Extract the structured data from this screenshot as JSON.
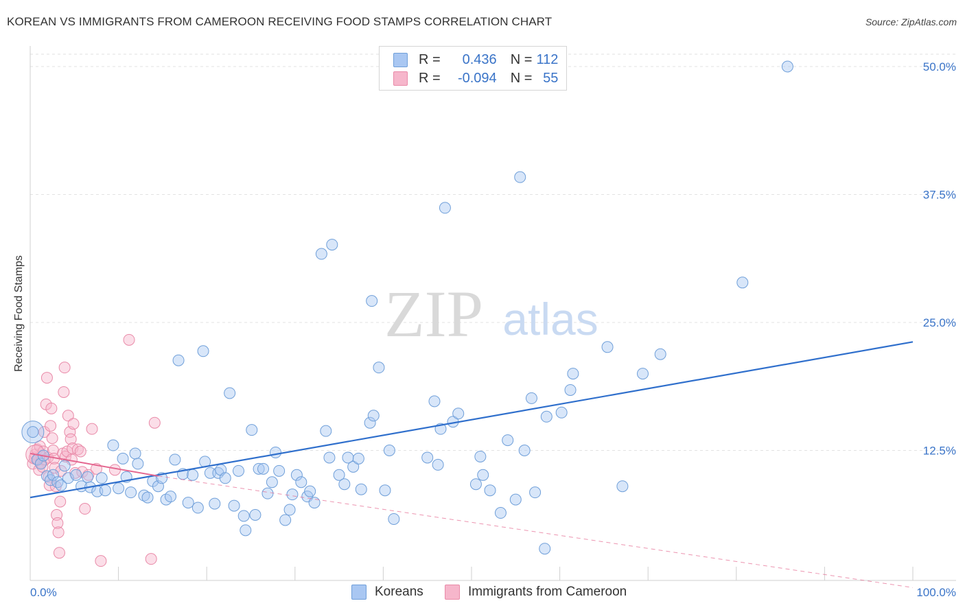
{
  "title": "KOREAN VS IMMIGRANTS FROM CAMEROON RECEIVING FOOD STAMPS CORRELATION CHART",
  "source": "Source: ZipAtlas.com",
  "watermark": {
    "zip": "ZIP",
    "atlas": "atlas"
  },
  "legend": {
    "rows": [
      {
        "r_label": "R =",
        "r_value": "0.436",
        "n_label": "N =",
        "n_value": "112",
        "color": "#a9c7f2"
      },
      {
        "r_label": "R =",
        "r_value": "-0.094",
        "n_label": "N =",
        "n_value": "55",
        "color": "#f6b6cb"
      }
    ]
  },
  "bottom_legend": {
    "koreans": "Koreans",
    "cameroon": "Immigrants from Cameroon"
  },
  "colors": {
    "blue_fill": "#a9c7f2",
    "blue_stroke": "#6f9fd9",
    "blue_line": "#2f6fcc",
    "pink_fill": "#f6b6cb",
    "pink_stroke": "#e98aa8",
    "pink_line": "#e4668f",
    "axis_text": "#3a74c8"
  },
  "chart_data": {
    "type": "scatter",
    "title": "KOREAN VS IMMIGRANTS FROM CAMEROON RECEIVING FOOD STAMPS CORRELATION CHART",
    "xlabel": "",
    "ylabel": "Receiving Food Stamps",
    "xlim": [
      0,
      100
    ],
    "ylim": [
      0,
      52
    ],
    "y_ticks": [
      12.5,
      25.0,
      37.5,
      50.0
    ],
    "y_tick_labels": [
      "12.5%",
      "25.0%",
      "37.5%",
      "50.0%"
    ],
    "x_tick_labels": [
      "0.0%",
      "100.0%"
    ],
    "grid": "horizontal dashed",
    "legend_position": "top-center",
    "series": [
      {
        "name": "Koreans",
        "trend": {
          "x": [
            0,
            100
          ],
          "y": [
            7.9,
            23.1
          ]
        },
        "points": [
          [
            0.3,
            14.3
          ],
          [
            0.8,
            11.6
          ],
          [
            1.2,
            11.2
          ],
          [
            1.5,
            12.0
          ],
          [
            1.9,
            10.0
          ],
          [
            2.3,
            9.6
          ],
          [
            2.6,
            10.1
          ],
          [
            3.1,
            9.4
          ],
          [
            3.5,
            9.1
          ],
          [
            3.9,
            11.0
          ],
          [
            4.3,
            9.8
          ],
          [
            5.2,
            10.1
          ],
          [
            5.8,
            9.0
          ],
          [
            6.5,
            9.9
          ],
          [
            6.8,
            8.9
          ],
          [
            7.6,
            8.5
          ],
          [
            8.1,
            9.8
          ],
          [
            8.5,
            8.6
          ],
          [
            9.4,
            13.0
          ],
          [
            10.0,
            8.8
          ],
          [
            10.5,
            11.7
          ],
          [
            10.9,
            9.9
          ],
          [
            11.4,
            8.4
          ],
          [
            11.9,
            12.2
          ],
          [
            12.2,
            11.2
          ],
          [
            12.9,
            8.1
          ],
          [
            13.3,
            7.9
          ],
          [
            13.9,
            9.5
          ],
          [
            14.5,
            9.0
          ],
          [
            14.9,
            9.8
          ],
          [
            15.4,
            7.7
          ],
          [
            15.9,
            8.0
          ],
          [
            16.4,
            11.6
          ],
          [
            16.8,
            21.3
          ],
          [
            17.3,
            10.2
          ],
          [
            17.9,
            7.4
          ],
          [
            18.4,
            10.1
          ],
          [
            19.0,
            6.9
          ],
          [
            19.6,
            22.2
          ],
          [
            19.8,
            11.4
          ],
          [
            20.4,
            10.3
          ],
          [
            20.9,
            7.3
          ],
          [
            21.3,
            10.3
          ],
          [
            21.6,
            10.6
          ],
          [
            22.1,
            9.8
          ],
          [
            22.6,
            18.1
          ],
          [
            23.1,
            7.1
          ],
          [
            23.6,
            10.5
          ],
          [
            24.2,
            6.1
          ],
          [
            24.4,
            4.7
          ],
          [
            25.1,
            14.5
          ],
          [
            25.5,
            6.2
          ],
          [
            25.9,
            10.7
          ],
          [
            26.4,
            10.7
          ],
          [
            26.9,
            8.3
          ],
          [
            27.4,
            9.4
          ],
          [
            27.8,
            12.3
          ],
          [
            28.2,
            10.5
          ],
          [
            28.9,
            5.7
          ],
          [
            29.4,
            6.7
          ],
          [
            29.7,
            8.2
          ],
          [
            30.2,
            10.1
          ],
          [
            30.7,
            9.4
          ],
          [
            31.4,
            8.0
          ],
          [
            31.7,
            8.5
          ],
          [
            32.2,
            7.4
          ],
          [
            33.0,
            31.7
          ],
          [
            33.5,
            14.4
          ],
          [
            33.9,
            11.8
          ],
          [
            34.2,
            32.6
          ],
          [
            35.0,
            10.1
          ],
          [
            35.6,
            9.2
          ],
          [
            36.0,
            11.8
          ],
          [
            36.6,
            10.9
          ],
          [
            37.2,
            11.7
          ],
          [
            37.5,
            8.7
          ],
          [
            38.5,
            15.2
          ],
          [
            38.7,
            27.1
          ],
          [
            38.9,
            15.9
          ],
          [
            39.5,
            20.6
          ],
          [
            40.2,
            8.6
          ],
          [
            40.7,
            12.5
          ],
          [
            41.2,
            5.8
          ],
          [
            45.0,
            11.8
          ],
          [
            45.8,
            17.3
          ],
          [
            46.2,
            11.1
          ],
          [
            46.5,
            14.6
          ],
          [
            47.0,
            36.2
          ],
          [
            47.9,
            15.3
          ],
          [
            48.5,
            16.1
          ],
          [
            50.5,
            9.2
          ],
          [
            51.0,
            11.9
          ],
          [
            51.3,
            10.1
          ],
          [
            52.1,
            8.6
          ],
          [
            53.3,
            6.4
          ],
          [
            54.1,
            13.5
          ],
          [
            55.0,
            7.7
          ],
          [
            55.5,
            39.2
          ],
          [
            56.0,
            12.5
          ],
          [
            56.8,
            17.6
          ],
          [
            57.2,
            8.4
          ],
          [
            58.3,
            2.9
          ],
          [
            58.5,
            15.8
          ],
          [
            60.2,
            16.2
          ],
          [
            61.2,
            18.4
          ],
          [
            61.5,
            20.0
          ],
          [
            65.4,
            22.6
          ],
          [
            67.1,
            9.0
          ],
          [
            69.4,
            20.0
          ],
          [
            71.4,
            21.9
          ],
          [
            80.7,
            28.9
          ],
          [
            85.8,
            50.0
          ]
        ],
        "big_point": [
          0.3,
          14.3
        ]
      },
      {
        "name": "Immigrants from Cameroon",
        "trend_solid": {
          "x": [
            0,
            14.5
          ],
          "y": [
            12.2,
            10.0
          ]
        },
        "trend_dashed": {
          "x": [
            14.5,
            100
          ],
          "y": [
            10.0,
            -0.9
          ]
        },
        "points": [
          [
            0.3,
            11.2
          ],
          [
            0.5,
            11.8
          ],
          [
            0.6,
            12.1
          ],
          [
            0.8,
            12.6
          ],
          [
            0.9,
            11.6
          ],
          [
            1.0,
            10.6
          ],
          [
            1.1,
            12.9
          ],
          [
            1.2,
            11.3
          ],
          [
            1.3,
            11.9
          ],
          [
            1.4,
            10.9
          ],
          [
            1.5,
            12.4
          ],
          [
            1.6,
            14.3
          ],
          [
            1.7,
            11.6
          ],
          [
            1.8,
            17.0
          ],
          [
            1.9,
            19.6
          ],
          [
            2.0,
            11.8
          ],
          [
            2.1,
            9.9
          ],
          [
            2.2,
            9.1
          ],
          [
            2.3,
            14.9
          ],
          [
            2.4,
            16.6
          ],
          [
            2.5,
            13.7
          ],
          [
            2.6,
            12.5
          ],
          [
            2.7,
            11.7
          ],
          [
            2.8,
            10.8
          ],
          [
            2.9,
            9.0
          ],
          [
            3.0,
            6.2
          ],
          [
            3.1,
            5.4
          ],
          [
            3.2,
            4.5
          ],
          [
            3.3,
            2.5
          ],
          [
            3.4,
            7.5
          ],
          [
            3.5,
            10.5
          ],
          [
            3.7,
            12.2
          ],
          [
            3.8,
            18.2
          ],
          [
            3.9,
            20.6
          ],
          [
            4.0,
            11.9
          ],
          [
            4.2,
            12.4
          ],
          [
            4.3,
            15.9
          ],
          [
            4.5,
            14.3
          ],
          [
            4.6,
            13.6
          ],
          [
            4.7,
            11.6
          ],
          [
            4.8,
            12.7
          ],
          [
            4.9,
            15.1
          ],
          [
            5.1,
            10.3
          ],
          [
            5.4,
            12.6
          ],
          [
            5.7,
            12.4
          ],
          [
            5.9,
            10.4
          ],
          [
            6.2,
            6.8
          ],
          [
            6.6,
            10.1
          ],
          [
            7.0,
            14.6
          ],
          [
            7.5,
            10.7
          ],
          [
            8.0,
            1.7
          ],
          [
            9.6,
            10.6
          ],
          [
            11.2,
            23.3
          ],
          [
            13.7,
            1.9
          ],
          [
            14.1,
            15.2
          ]
        ],
        "big_point": [
          0.6,
          12.1
        ]
      }
    ]
  }
}
